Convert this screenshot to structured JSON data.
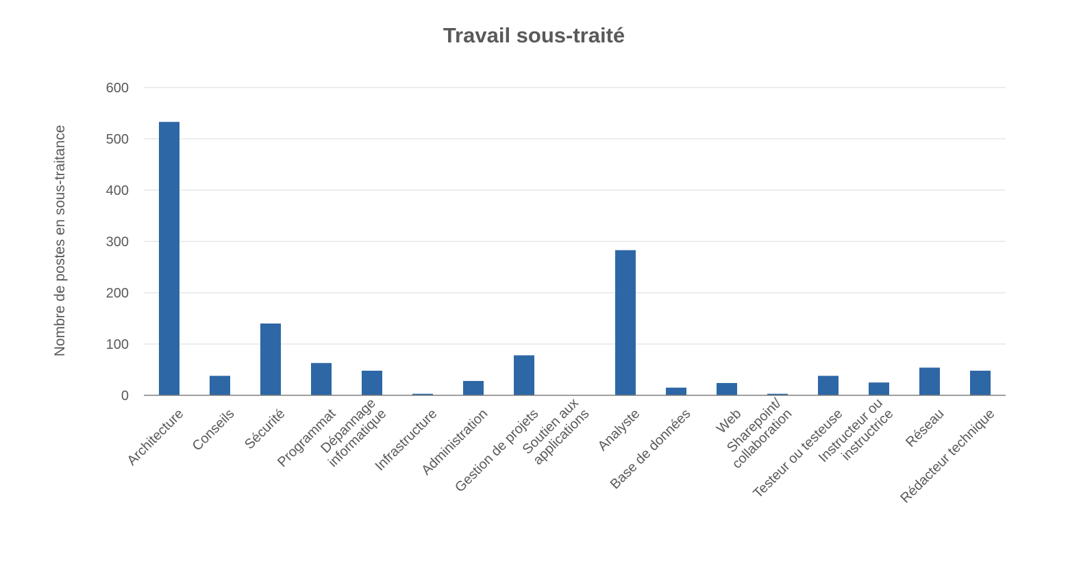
{
  "chart_data": {
    "type": "bar",
    "title": "Travail sous-traité",
    "xlabel": "",
    "ylabel": "Nombre de postes en sous-traitance",
    "ylim": [
      0,
      600
    ],
    "yticks": [
      0,
      100,
      200,
      300,
      400,
      500,
      600
    ],
    "grid": true,
    "legend": "none",
    "bar_color": "#2e67a5",
    "grid_color": "#d9d9d9",
    "categories": [
      [
        "Architecture"
      ],
      [
        "Conseils"
      ],
      [
        "Sécurité"
      ],
      [
        "Programmat"
      ],
      [
        "Dépannage",
        "informatique"
      ],
      [
        "Infrastructure"
      ],
      [
        "Administration"
      ],
      [
        "Gestion de projets"
      ],
      [
        "Soutien aux",
        "applications"
      ],
      [
        "Analyste"
      ],
      [
        "Base de données"
      ],
      [
        "Web"
      ],
      [
        "Sharepoint/",
        "collaboration"
      ],
      [
        "Testeur ou testeuse"
      ],
      [
        "Instructeur ou",
        "instructrice"
      ],
      [
        "Réseau"
      ],
      [
        "Rédacteur technique"
      ]
    ],
    "values": [
      533,
      38,
      140,
      63,
      48,
      3,
      28,
      78,
      0,
      283,
      15,
      24,
      3,
      38,
      25,
      54,
      48
    ]
  }
}
